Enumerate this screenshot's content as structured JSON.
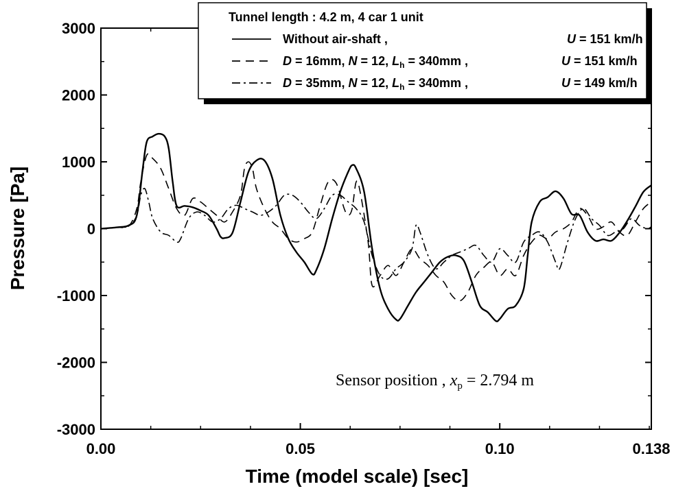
{
  "chart_data": {
    "type": "line",
    "xlabel": "Time (model scale) [sec]",
    "ylabel": "Pressure [Pa]",
    "xlim": [
      0,
      0.138
    ],
    "ylim": [
      -3000,
      3000
    ],
    "x_ticks": [
      0,
      0.05,
      0.1,
      0.138
    ],
    "x_tick_labels": [
      "0.00",
      "0.05",
      "0.10",
      "0.138"
    ],
    "y_ticks": [
      -3000,
      -2000,
      -1000,
      0,
      1000,
      2000,
      3000
    ],
    "y_tick_labels": [
      "-3000",
      "-2000",
      "-1000",
      "0",
      "1000",
      "2000",
      "3000"
    ],
    "grid": false,
    "legend": {
      "position": "top-right",
      "header": "Tunnel length : 4.2 m,  4 car 1 unit",
      "entries": [
        {
          "series": 0,
          "label_main": "Without air-shaft ,",
          "label_speed": "U = 151 km/h"
        },
        {
          "series": 1,
          "label_main": "D = 16mm, N = 12, Lh = 340mm ,",
          "label_speed": "U = 151 km/h"
        },
        {
          "series": 2,
          "label_main": "D = 35mm, N = 12, Lh = 340mm ,",
          "label_speed": "U = 149 km/h"
        }
      ]
    },
    "annotation": {
      "text": "Sensor position ,  xp = 2.794 m",
      "position": "bottom-right"
    },
    "series": [
      {
        "line_style": "solid",
        "points": [
          [
            0,
            0
          ],
          [
            0.004,
            20
          ],
          [
            0.007,
            50
          ],
          [
            0.009,
            200
          ],
          [
            0.0105,
            900
          ],
          [
            0.0115,
            1300
          ],
          [
            0.013,
            1380
          ],
          [
            0.0145,
            1420
          ],
          [
            0.016,
            1380
          ],
          [
            0.017,
            1200
          ],
          [
            0.018,
            700
          ],
          [
            0.019,
            340
          ],
          [
            0.021,
            340
          ],
          [
            0.023,
            320
          ],
          [
            0.025,
            270
          ],
          [
            0.027,
            200
          ],
          [
            0.029,
            0
          ],
          [
            0.03,
            -120
          ],
          [
            0.031,
            -140
          ],
          [
            0.033,
            -60
          ],
          [
            0.035,
            400
          ],
          [
            0.037,
            850
          ],
          [
            0.039,
            1020
          ],
          [
            0.041,
            1020
          ],
          [
            0.043,
            750
          ],
          [
            0.045,
            200
          ],
          [
            0.047,
            -150
          ],
          [
            0.049,
            -350
          ],
          [
            0.051,
            -500
          ],
          [
            0.053,
            -680
          ],
          [
            0.054,
            -620
          ],
          [
            0.056,
            -300
          ],
          [
            0.058,
            150
          ],
          [
            0.06,
            550
          ],
          [
            0.062,
            850
          ],
          [
            0.063,
            950
          ],
          [
            0.064,
            900
          ],
          [
            0.066,
            550
          ],
          [
            0.068,
            -300
          ],
          [
            0.07,
            -900
          ],
          [
            0.072,
            -1200
          ],
          [
            0.074,
            -1360
          ],
          [
            0.075,
            -1350
          ],
          [
            0.077,
            -1150
          ],
          [
            0.079,
            -950
          ],
          [
            0.081,
            -800
          ],
          [
            0.083,
            -650
          ],
          [
            0.085,
            -500
          ],
          [
            0.087,
            -420
          ],
          [
            0.089,
            -400
          ],
          [
            0.091,
            -480
          ],
          [
            0.093,
            -800
          ],
          [
            0.095,
            -1150
          ],
          [
            0.097,
            -1250
          ],
          [
            0.099,
            -1380
          ],
          [
            0.1,
            -1350
          ],
          [
            0.102,
            -1200
          ],
          [
            0.104,
            -1150
          ],
          [
            0.106,
            -900
          ],
          [
            0.107,
            -400
          ],
          [
            0.108,
            100
          ],
          [
            0.11,
            400
          ],
          [
            0.112,
            470
          ],
          [
            0.114,
            560
          ],
          [
            0.116,
            450
          ],
          [
            0.118,
            220
          ],
          [
            0.12,
            200
          ],
          [
            0.122,
            -50
          ],
          [
            0.124,
            -180
          ],
          [
            0.126,
            -160
          ],
          [
            0.128,
            -180
          ],
          [
            0.13,
            -60
          ],
          [
            0.132,
            120
          ],
          [
            0.134,
            330
          ],
          [
            0.136,
            550
          ],
          [
            0.138,
            650
          ]
        ]
      },
      {
        "line_style": "dashed",
        "points": [
          [
            0,
            0
          ],
          [
            0.004,
            20
          ],
          [
            0.007,
            40
          ],
          [
            0.009,
            300
          ],
          [
            0.01,
            700
          ],
          [
            0.0115,
            1100
          ],
          [
            0.013,
            1050
          ],
          [
            0.015,
            900
          ],
          [
            0.017,
            600
          ],
          [
            0.019,
            300
          ],
          [
            0.021,
            200
          ],
          [
            0.023,
            450
          ],
          [
            0.025,
            400
          ],
          [
            0.027,
            300
          ],
          [
            0.029,
            200
          ],
          [
            0.031,
            100
          ],
          [
            0.033,
            250
          ],
          [
            0.035,
            500
          ],
          [
            0.036,
            900
          ],
          [
            0.037,
            1000
          ],
          [
            0.038,
            900
          ],
          [
            0.039,
            600
          ],
          [
            0.041,
            300
          ],
          [
            0.043,
            100
          ],
          [
            0.045,
            0
          ],
          [
            0.047,
            -150
          ],
          [
            0.049,
            -200
          ],
          [
            0.051,
            -150
          ],
          [
            0.053,
            -50
          ],
          [
            0.055,
            350
          ],
          [
            0.057,
            700
          ],
          [
            0.059,
            680
          ],
          [
            0.061,
            300
          ],
          [
            0.062,
            200
          ],
          [
            0.063,
            300
          ],
          [
            0.064,
            700
          ],
          [
            0.065,
            550
          ],
          [
            0.067,
            -200
          ],
          [
            0.068,
            -850
          ],
          [
            0.07,
            -700
          ],
          [
            0.072,
            -550
          ],
          [
            0.074,
            -700
          ],
          [
            0.076,
            -500
          ],
          [
            0.078,
            -300
          ],
          [
            0.08,
            -450
          ],
          [
            0.082,
            -550
          ],
          [
            0.084,
            -700
          ],
          [
            0.086,
            -800
          ],
          [
            0.088,
            -1000
          ],
          [
            0.09,
            -1080
          ],
          [
            0.092,
            -950
          ],
          [
            0.094,
            -700
          ],
          [
            0.096,
            -580
          ],
          [
            0.098,
            -500
          ],
          [
            0.1,
            -700
          ],
          [
            0.102,
            -600
          ],
          [
            0.104,
            -700
          ],
          [
            0.106,
            -400
          ],
          [
            0.108,
            -200
          ],
          [
            0.11,
            -100
          ],
          [
            0.112,
            -150
          ],
          [
            0.114,
            -50
          ],
          [
            0.116,
            0
          ],
          [
            0.118,
            100
          ],
          [
            0.12,
            300
          ],
          [
            0.122,
            200
          ],
          [
            0.124,
            0
          ],
          [
            0.126,
            30
          ],
          [
            0.128,
            100
          ],
          [
            0.13,
            -50
          ],
          [
            0.132,
            -100
          ],
          [
            0.134,
            100
          ],
          [
            0.136,
            300
          ],
          [
            0.138,
            400
          ]
        ]
      },
      {
        "line_style": "dashdot",
        "points": [
          [
            0,
            0
          ],
          [
            0.004,
            20
          ],
          [
            0.007,
            40
          ],
          [
            0.009,
            200
          ],
          [
            0.01,
            500
          ],
          [
            0.011,
            600
          ],
          [
            0.012,
            400
          ],
          [
            0.013,
            150
          ],
          [
            0.015,
            -50
          ],
          [
            0.017,
            -100
          ],
          [
            0.019,
            -200
          ],
          [
            0.02,
            -150
          ],
          [
            0.022,
            150
          ],
          [
            0.024,
            250
          ],
          [
            0.026,
            200
          ],
          [
            0.028,
            100
          ],
          [
            0.03,
            150
          ],
          [
            0.032,
            300
          ],
          [
            0.034,
            350
          ],
          [
            0.036,
            300
          ],
          [
            0.038,
            250
          ],
          [
            0.04,
            200
          ],
          [
            0.042,
            250
          ],
          [
            0.044,
            350
          ],
          [
            0.046,
            500
          ],
          [
            0.048,
            500
          ],
          [
            0.05,
            400
          ],
          [
            0.052,
            250
          ],
          [
            0.054,
            150
          ],
          [
            0.056,
            300
          ],
          [
            0.058,
            500
          ],
          [
            0.06,
            500
          ],
          [
            0.062,
            400
          ],
          [
            0.064,
            300
          ],
          [
            0.066,
            100
          ],
          [
            0.068,
            -400
          ],
          [
            0.07,
            -700
          ],
          [
            0.072,
            -750
          ],
          [
            0.074,
            -600
          ],
          [
            0.076,
            -500
          ],
          [
            0.078,
            -300
          ],
          [
            0.079,
            50
          ],
          [
            0.08,
            -50
          ],
          [
            0.082,
            -400
          ],
          [
            0.084,
            -600
          ],
          [
            0.086,
            -500
          ],
          [
            0.088,
            -400
          ],
          [
            0.09,
            -350
          ],
          [
            0.092,
            -300
          ],
          [
            0.094,
            -250
          ],
          [
            0.096,
            -400
          ],
          [
            0.098,
            -500
          ],
          [
            0.1,
            -300
          ],
          [
            0.102,
            -400
          ],
          [
            0.104,
            -500
          ],
          [
            0.106,
            -200
          ],
          [
            0.108,
            -100
          ],
          [
            0.11,
            -50
          ],
          [
            0.112,
            -200
          ],
          [
            0.114,
            -500
          ],
          [
            0.115,
            -600
          ],
          [
            0.117,
            -200
          ],
          [
            0.119,
            150
          ],
          [
            0.121,
            300
          ],
          [
            0.123,
            150
          ],
          [
            0.125,
            50
          ],
          [
            0.127,
            -100
          ],
          [
            0.129,
            -50
          ],
          [
            0.131,
            0
          ],
          [
            0.133,
            150
          ],
          [
            0.135,
            50
          ],
          [
            0.137,
            0
          ],
          [
            0.138,
            30
          ]
        ]
      }
    ]
  }
}
